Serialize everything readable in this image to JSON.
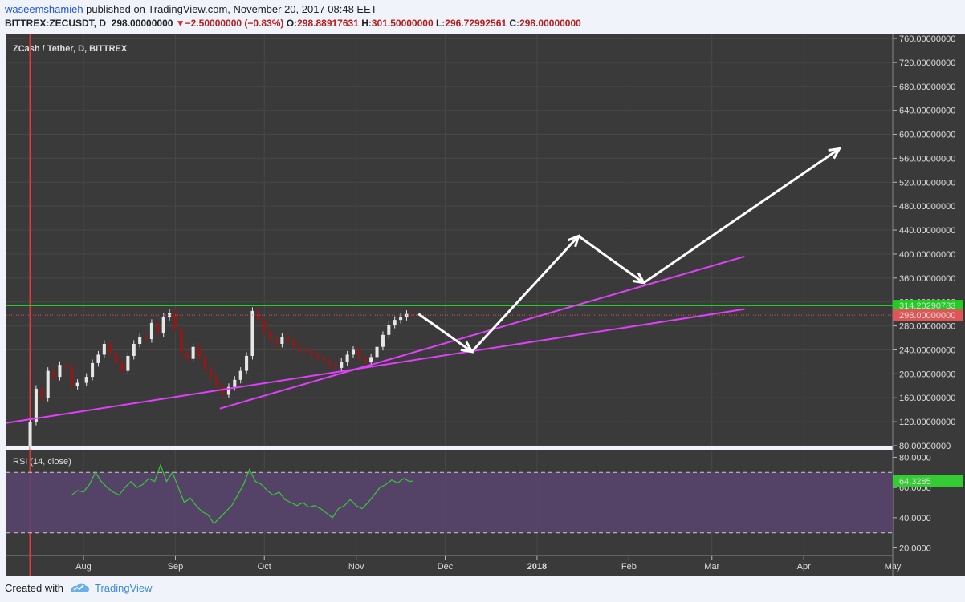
{
  "header": {
    "author": "waseemshamieh",
    "published": "published on TradingView.com, November 20, 2017 08:48 EET",
    "symbol": "BITTREX:ZECUSDT, D",
    "last": "298.00000000",
    "change": "−2.50000000 (−0.83%)",
    "open_label": "O:",
    "open": "298.88917631",
    "high_label": "H:",
    "high": "301.50000000",
    "low_label": "L:",
    "low": "296.72992561",
    "close_label": "C:",
    "close": "298.00000000"
  },
  "chart_title": "ZCash / Tether, D, BITTREX",
  "rsi_title": "RSI (14, close)",
  "footer": {
    "created": "Created with",
    "brand": "TradingView"
  },
  "colors": {
    "background": "#3a3a3a",
    "up": "#e6e6e6",
    "down": "#8a1c1c",
    "trendline": "#e040fb",
    "resistance": "#22cc22",
    "last_price": "#e05555",
    "rsi_line": "#33cc33",
    "rsi_band": "#5a4470",
    "arrows": "#ffffff"
  },
  "chart_data": [
    {
      "type": "candlestick",
      "title": "ZCash / Tether, D, BITTREX",
      "ylim": [
        80,
        760
      ],
      "y_ticks": [
        "760.00000000",
        "720.00000000",
        "680.00000000",
        "640.00000000",
        "600.00000000",
        "560.00000000",
        "520.00000000",
        "480.00000000",
        "440.00000000",
        "400.00000000",
        "360.00000000",
        "320.00000000",
        "280.00000000",
        "240.00000000",
        "200.00000000",
        "160.00000000",
        "120.00000000",
        "80.00000000"
      ],
      "x_ticks": [
        "Aug",
        "Sep",
        "Oct",
        "Nov",
        "Dec",
        "2018",
        "Feb",
        "Mar",
        "Apr",
        "May"
      ],
      "x_range": [
        "2017-07-06",
        "2018-05-01"
      ],
      "series": [
        {
          "name": "ZECUSDT",
          "points": [
            [
              "2017-07-14",
              120
            ],
            [
              "2017-07-16",
              175
            ],
            [
              "2017-07-18",
              160
            ],
            [
              "2017-07-20",
              205
            ],
            [
              "2017-07-22",
              195
            ],
            [
              "2017-07-24",
              215
            ],
            [
              "2017-07-26",
              212
            ],
            [
              "2017-07-28",
              180
            ],
            [
              "2017-07-30",
              185
            ],
            [
              "2017-08-02",
              195
            ],
            [
              "2017-08-04",
              218
            ],
            [
              "2017-08-06",
              232
            ],
            [
              "2017-08-08",
              250
            ],
            [
              "2017-08-10",
              235
            ],
            [
              "2017-08-12",
              218
            ],
            [
              "2017-08-14",
              205
            ],
            [
              "2017-08-16",
              230
            ],
            [
              "2017-08-18",
              250
            ],
            [
              "2017-08-20",
              262
            ],
            [
              "2017-08-22",
              258
            ],
            [
              "2017-08-24",
              285
            ],
            [
              "2017-08-26",
              268
            ],
            [
              "2017-08-28",
              295
            ],
            [
              "2017-08-30",
              302
            ],
            [
              "2017-09-01",
              275
            ],
            [
              "2017-09-03",
              235
            ],
            [
              "2017-09-05",
              225
            ],
            [
              "2017-09-07",
              245
            ],
            [
              "2017-09-09",
              228
            ],
            [
              "2017-09-11",
              208
            ],
            [
              "2017-09-13",
              195
            ],
            [
              "2017-09-15",
              178
            ],
            [
              "2017-09-17",
              165
            ],
            [
              "2017-09-19",
              178
            ],
            [
              "2017-09-21",
              190
            ],
            [
              "2017-09-23",
              205
            ],
            [
              "2017-09-25",
              230
            ],
            [
              "2017-09-27",
              305
            ],
            [
              "2017-09-29",
              290
            ],
            [
              "2017-10-01",
              270
            ],
            [
              "2017-10-03",
              258
            ],
            [
              "2017-10-05",
              250
            ],
            [
              "2017-10-07",
              262
            ],
            [
              "2017-10-09",
              255
            ],
            [
              "2017-10-11",
              245
            ],
            [
              "2017-10-13",
              240
            ],
            [
              "2017-10-15",
              238
            ],
            [
              "2017-10-17",
              232
            ],
            [
              "2017-10-19",
              228
            ],
            [
              "2017-10-21",
              222
            ],
            [
              "2017-10-23",
              215
            ],
            [
              "2017-10-25",
              210
            ],
            [
              "2017-10-27",
              220
            ],
            [
              "2017-10-29",
              232
            ],
            [
              "2017-10-31",
              240
            ],
            [
              "2017-11-02",
              225
            ],
            [
              "2017-11-04",
              220
            ],
            [
              "2017-11-06",
              228
            ],
            [
              "2017-11-08",
              245
            ],
            [
              "2017-11-10",
              265
            ],
            [
              "2017-11-12",
              282
            ],
            [
              "2017-11-14",
              290
            ],
            [
              "2017-11-16",
              295
            ],
            [
              "2017-11-18",
              300
            ],
            [
              "2017-11-20",
              298
            ]
          ]
        }
      ],
      "annotations": {
        "resistance_level": 314.20290783,
        "resistance_label": "314.20290783",
        "last_price": 298,
        "last_price_label": "298.00000000",
        "trendlines": [
          {
            "from": [
              "2017-07-06",
              118
            ],
            "to": [
              "2018-03-12",
              308
            ]
          },
          {
            "from": [
              "2017-09-16",
              142
            ],
            "to": [
              "2018-03-12",
              396
            ]
          }
        ],
        "projection_path": [
          [
            "2017-11-22",
            300
          ],
          [
            "2017-12-10",
            237
          ],
          [
            "2018-01-15",
            430
          ],
          [
            "2018-02-06",
            352
          ],
          [
            "2018-04-13",
            576
          ]
        ]
      }
    },
    {
      "type": "line",
      "title": "RSI (14, close)",
      "ylim": [
        15,
        85
      ],
      "y_ticks": [
        "80.0000",
        "60.0000",
        "40.0000",
        "20.0000"
      ],
      "band": [
        30,
        70
      ],
      "last_label": "64.3285",
      "series": [
        {
          "name": "RSI",
          "points": [
            [
              "2017-07-28",
              55
            ],
            [
              "2017-07-30",
              58
            ],
            [
              "2017-08-01",
              57
            ],
            [
              "2017-08-03",
              62
            ],
            [
              "2017-08-05",
              70
            ],
            [
              "2017-08-07",
              64
            ],
            [
              "2017-08-09",
              60
            ],
            [
              "2017-08-11",
              57
            ],
            [
              "2017-08-13",
              55
            ],
            [
              "2017-08-15",
              60
            ],
            [
              "2017-08-17",
              64
            ],
            [
              "2017-08-19",
              60
            ],
            [
              "2017-08-21",
              62
            ],
            [
              "2017-08-23",
              66
            ],
            [
              "2017-08-25",
              64
            ],
            [
              "2017-08-27",
              75
            ],
            [
              "2017-08-29",
              64
            ],
            [
              "2017-08-31",
              70
            ],
            [
              "2017-09-02",
              60
            ],
            [
              "2017-09-04",
              50
            ],
            [
              "2017-09-06",
              53
            ],
            [
              "2017-09-08",
              48
            ],
            [
              "2017-09-10",
              44
            ],
            [
              "2017-09-12",
              42
            ],
            [
              "2017-09-14",
              36
            ],
            [
              "2017-09-16",
              40
            ],
            [
              "2017-09-18",
              44
            ],
            [
              "2017-09-20",
              48
            ],
            [
              "2017-09-22",
              55
            ],
            [
              "2017-09-24",
              62
            ],
            [
              "2017-09-26",
              72
            ],
            [
              "2017-09-28",
              64
            ],
            [
              "2017-09-30",
              62
            ],
            [
              "2017-10-02",
              58
            ],
            [
              "2017-10-04",
              55
            ],
            [
              "2017-10-06",
              57
            ],
            [
              "2017-10-08",
              52
            ],
            [
              "2017-10-10",
              50
            ],
            [
              "2017-10-12",
              48
            ],
            [
              "2017-10-14",
              50
            ],
            [
              "2017-10-16",
              47
            ],
            [
              "2017-10-18",
              48
            ],
            [
              "2017-10-20",
              46
            ],
            [
              "2017-10-22",
              43
            ],
            [
              "2017-10-24",
              40
            ],
            [
              "2017-10-26",
              46
            ],
            [
              "2017-10-28",
              48
            ],
            [
              "2017-10-30",
              52
            ],
            [
              "2017-11-01",
              48
            ],
            [
              "2017-11-03",
              46
            ],
            [
              "2017-11-05",
              50
            ],
            [
              "2017-11-07",
              55
            ],
            [
              "2017-11-09",
              60
            ],
            [
              "2017-11-11",
              62
            ],
            [
              "2017-11-13",
              65
            ],
            [
              "2017-11-15",
              63
            ],
            [
              "2017-11-17",
              66
            ],
            [
              "2017-11-19",
              64
            ],
            [
              "2017-11-20",
              64.3285
            ]
          ]
        }
      ]
    }
  ]
}
